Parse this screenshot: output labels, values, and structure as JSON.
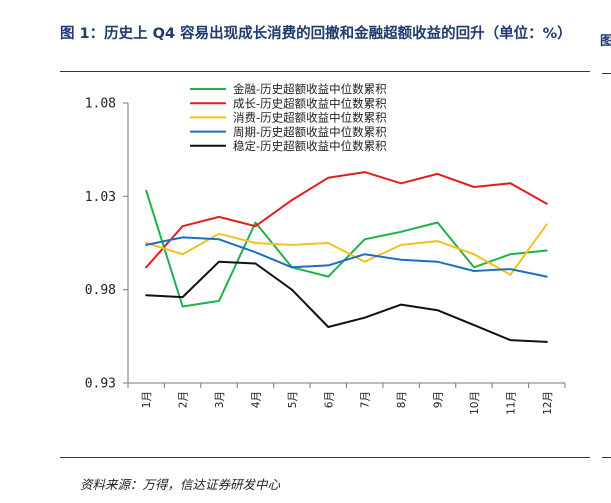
{
  "figure": {
    "title": "图 1：历史上 Q4 容易出现成长消费的回撤和金融超额收益的回升（单位：%）",
    "source": "资料来源：万得，信达证券研发中心",
    "edge_glyph": "图"
  },
  "chart_data": {
    "type": "line",
    "title": "",
    "xlabel": "",
    "ylabel": "",
    "categories": [
      "1月",
      "2月",
      "3月",
      "4月",
      "5月",
      "6月",
      "7月",
      "8月",
      "9月",
      "10月",
      "11月",
      "12月"
    ],
    "ylim": [
      0.93,
      1.08
    ],
    "yticks": [
      "1.08",
      "1.03",
      "0.98",
      "0.93"
    ],
    "ytick_values": [
      1.08,
      1.03,
      0.98,
      0.93
    ],
    "grid": false,
    "legend": "top-center",
    "series": [
      {
        "name": "金融-历史超额收益中位数累积",
        "color": "#1db34a",
        "values": [
          1.033,
          0.971,
          0.974,
          1.016,
          0.992,
          0.987,
          1.007,
          1.011,
          1.016,
          0.992,
          0.999,
          1.001
        ]
      },
      {
        "name": "成长-历史超额收益中位数累积",
        "color": "#e0201f",
        "values": [
          0.992,
          1.014,
          1.019,
          1.014,
          1.028,
          1.04,
          1.043,
          1.037,
          1.042,
          1.035,
          1.037,
          1.026
        ]
      },
      {
        "name": "消费-历史超额收益中位数累积",
        "color": "#f5c01e",
        "values": [
          1.005,
          0.999,
          1.01,
          1.005,
          1.004,
          1.005,
          0.995,
          1.004,
          1.006,
          0.999,
          0.988,
          1.015
        ]
      },
      {
        "name": "周期-历史超额收益中位数累积",
        "color": "#1f6fbf",
        "values": [
          1.004,
          1.008,
          1.007,
          1.0,
          0.992,
          0.993,
          0.999,
          0.996,
          0.995,
          0.99,
          0.991,
          0.987
        ]
      },
      {
        "name": "稳定-历史超额收益中位数累积",
        "color": "#111111",
        "values": [
          0.977,
          0.976,
          0.995,
          0.994,
          0.98,
          0.96,
          0.965,
          0.972,
          0.969,
          0.961,
          0.953,
          0.952
        ]
      }
    ]
  }
}
